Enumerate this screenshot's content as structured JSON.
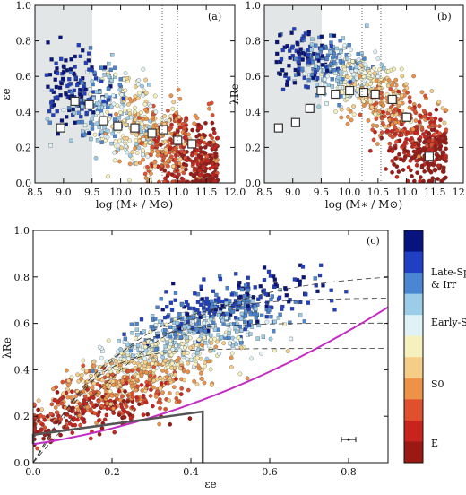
{
  "chart_data": [
    {
      "panel_label": "(a)",
      "type": "scatter",
      "xlabel": "log (M∗ / M⊙)",
      "ylabel": "εe",
      "xlim": [
        8.5,
        12.0
      ],
      "ylim": [
        0.0,
        1.0
      ],
      "xticks": [
        "8.5",
        "9.0",
        "9.5",
        "10.0",
        "10.5",
        "11.0",
        "11.5",
        "12.0"
      ],
      "yticks": [
        "0.0",
        "0.2",
        "0.4",
        "0.6",
        "0.8",
        "1.0"
      ],
      "shaded_region_x": [
        8.5,
        9.5
      ],
      "dotted_lines_x": [
        10.2,
        10.6
      ],
      "binned_medians": {
        "x": [
          8.95,
          9.2,
          9.45,
          9.7,
          9.95,
          10.25,
          10.55,
          10.75,
          11.0,
          11.25
        ],
        "y": [
          0.31,
          0.46,
          0.44,
          0.35,
          0.32,
          0.31,
          0.28,
          0.3,
          0.24,
          0.22
        ]
      }
    },
    {
      "panel_label": "(b)",
      "type": "scatter",
      "xlabel": "log (M∗ / M⊙)",
      "ylabel": "λRe",
      "xlim": [
        8.5,
        12.0
      ],
      "ylim": [
        0.0,
        1.0
      ],
      "xticks": [
        "8.5",
        "9.0",
        "9.5",
        "10.0",
        "10.5",
        "11.0",
        "11.5",
        "12.0"
      ],
      "yticks": [
        "0.0",
        "0.2",
        "0.4",
        "0.6",
        "0.8",
        "1.0"
      ],
      "shaded_region_x": [
        8.5,
        9.5
      ],
      "dotted_lines_x": [
        10.2,
        10.6
      ],
      "binned_medians": {
        "x": [
          8.75,
          9.05,
          9.3,
          9.5,
          9.75,
          10.0,
          10.25,
          10.45,
          10.75,
          11.0,
          11.4
        ],
        "y": [
          0.31,
          0.34,
          0.42,
          0.52,
          0.5,
          0.52,
          0.51,
          0.5,
          0.47,
          0.37,
          0.15
        ]
      }
    },
    {
      "panel_label": "(c)",
      "type": "scatter",
      "xlabel": "εe",
      "ylabel": "λRe",
      "xlim": [
        0.0,
        0.9
      ],
      "ylim": [
        0.0,
        1.0
      ],
      "xticks": [
        "0.0",
        "0.2",
        "0.4",
        "0.6",
        "0.8"
      ],
      "yticks": [
        "0.0",
        "0.2",
        "0.4",
        "0.6",
        "0.8",
        "1.0"
      ],
      "slow_rotator_box": [
        [
          0.0,
          0.08
        ],
        [
          0.0,
          0.12
        ],
        [
          0.43,
          0.22
        ],
        [
          0.43,
          0.0
        ]
      ],
      "colorbar": {
        "labels": [
          "Late-Spiral",
          "& Irr",
          "Early-Spiral",
          "S0",
          "E"
        ],
        "colors": [
          "#07137e",
          "#1f3fc4",
          "#4a86d2",
          "#9ccde8",
          "#dff3f7",
          "#f6f1bc",
          "#f5cd86",
          "#ee9248",
          "#e0502c",
          "#c9231d",
          "#9c1913"
        ]
      },
      "errorbar": {
        "x": 0.8,
        "y": 0.1
      }
    }
  ],
  "colors": {
    "shade": "#e3e6e6",
    "box_line": "#555555",
    "magenta_curve": "#c42dc4",
    "median_square_fill": "#ffffff"
  }
}
